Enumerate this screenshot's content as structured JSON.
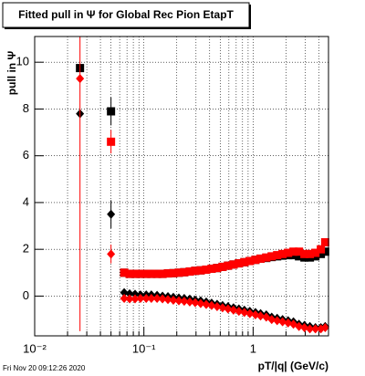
{
  "chart_data": {
    "type": "scatter",
    "title": "Fitted pull in Ψ  for Global Rec Pion EtapT",
    "y_label": "pull in Ψ",
    "x_label": "pT/|q| (GeV/c)",
    "footer": "Fri Nov 20 09:12:26 2020",
    "log_x": true,
    "grid": true,
    "xlim": [
      0.01,
      4.9
    ],
    "ylim": [
      -1.7,
      11.1
    ],
    "xticks": [
      {
        "value": 0.01,
        "label": "10⁻²"
      },
      {
        "value": 0.1,
        "label": "10⁻¹"
      },
      1
    ],
    "xminorticks": [
      0.02,
      0.03,
      0.04,
      0.05,
      0.06,
      0.07,
      0.08,
      0.09,
      0.2,
      0.3,
      0.4,
      0.5,
      0.6,
      0.7,
      0.8,
      0.9,
      2,
      3,
      4
    ],
    "yticks": [
      0,
      2,
      4,
      6,
      8,
      10
    ],
    "x": [
      0.026,
      0.05,
      0.066,
      0.074,
      0.083,
      0.093,
      0.105,
      0.117,
      0.132,
      0.148,
      0.166,
      0.186,
      0.209,
      0.234,
      0.263,
      0.295,
      0.331,
      0.372,
      0.417,
      0.468,
      0.525,
      0.589,
      0.661,
      0.741,
      0.832,
      0.933,
      1.05,
      1.17,
      1.32,
      1.48,
      1.66,
      1.86,
      2.09,
      2.34,
      2.63,
      2.95,
      3.31,
      3.72,
      4.17,
      4.57
    ],
    "series": [
      {
        "name": "black-squares",
        "color": "#000000",
        "marker": "square",
        "values": [
          9.75,
          7.9,
          1.0,
          0.95,
          0.95,
          0.95,
          0.95,
          0.95,
          0.95,
          0.95,
          0.97,
          0.98,
          1.0,
          1.02,
          1.05,
          1.08,
          1.1,
          1.13,
          1.17,
          1.2,
          1.25,
          1.3,
          1.35,
          1.4,
          1.45,
          1.5,
          1.55,
          1.6,
          1.63,
          1.67,
          1.7,
          1.73,
          1.75,
          1.75,
          1.7,
          1.65,
          1.65,
          1.7,
          1.8,
          1.9
        ],
        "errors": [
          null,
          0.6,
          null,
          null,
          null,
          null,
          null,
          null,
          null,
          null,
          null,
          null,
          null,
          null,
          null,
          null,
          null,
          null,
          null,
          null,
          null,
          null,
          null,
          null,
          null,
          null,
          null,
          null,
          null,
          null,
          null,
          null,
          null,
          null,
          null,
          null,
          null,
          null,
          null,
          null
        ]
      },
      {
        "name": "red-squares",
        "color": "#ff0000",
        "marker": "square",
        "values": [
          null,
          6.6,
          1.0,
          0.95,
          0.95,
          0.95,
          0.95,
          0.95,
          0.95,
          0.95,
          0.97,
          0.98,
          1.0,
          1.02,
          1.05,
          1.08,
          1.1,
          1.13,
          1.17,
          1.2,
          1.25,
          1.3,
          1.35,
          1.4,
          1.45,
          1.5,
          1.55,
          1.6,
          1.65,
          1.7,
          1.75,
          1.8,
          1.85,
          1.9,
          1.9,
          1.8,
          1.8,
          1.85,
          2.0,
          2.3
        ],
        "errors": [
          null,
          0.5,
          null,
          null,
          null,
          null,
          null,
          null,
          null,
          null,
          null,
          null,
          null,
          null,
          null,
          null,
          null,
          null,
          null,
          null,
          null,
          null,
          null,
          null,
          null,
          null,
          null,
          null,
          null,
          null,
          null,
          null,
          null,
          null,
          null,
          null,
          null,
          null,
          null,
          null
        ]
      },
      {
        "name": "black-diamonds",
        "color": "#000000",
        "marker": "diamond",
        "values": [
          7.8,
          3.5,
          0.15,
          0.1,
          0.08,
          0.05,
          0.05,
          0.05,
          0.03,
          0.0,
          -0.02,
          -0.05,
          -0.08,
          -0.1,
          -0.13,
          -0.17,
          -0.2,
          -0.25,
          -0.3,
          -0.35,
          -0.4,
          -0.45,
          -0.5,
          -0.55,
          -0.6,
          -0.65,
          -0.7,
          -0.75,
          -0.8,
          -0.9,
          -0.95,
          -1.0,
          -1.05,
          -1.1,
          -1.2,
          -1.25,
          -1.3,
          -1.35,
          -1.35,
          -1.3
        ],
        "errors": [
          null,
          0.6,
          null,
          null,
          null,
          null,
          null,
          null,
          null,
          null,
          null,
          null,
          null,
          null,
          null,
          null,
          null,
          null,
          null,
          null,
          null,
          null,
          null,
          null,
          null,
          null,
          null,
          null,
          null,
          null,
          null,
          null,
          null,
          null,
          null,
          null,
          null,
          null,
          null,
          null
        ]
      },
      {
        "name": "red-diamonds",
        "color": "#ff0000",
        "marker": "diamond",
        "values": [
          9.3,
          1.8,
          -0.1,
          -0.12,
          -0.12,
          -0.1,
          -0.1,
          -0.1,
          -0.1,
          -0.12,
          -0.15,
          -0.18,
          -0.2,
          -0.22,
          -0.25,
          -0.28,
          -0.32,
          -0.36,
          -0.4,
          -0.45,
          -0.5,
          -0.55,
          -0.6,
          -0.65,
          -0.7,
          -0.75,
          -0.8,
          -0.85,
          -0.9,
          -1.0,
          -1.05,
          -1.1,
          -1.15,
          -1.2,
          -1.3,
          -1.35,
          -1.4,
          -1.4,
          -1.4,
          -1.35
        ],
        "errors": [
          10.8,
          0.4,
          null,
          null,
          null,
          null,
          null,
          null,
          null,
          null,
          null,
          null,
          null,
          null,
          null,
          null,
          null,
          null,
          null,
          null,
          null,
          null,
          null,
          null,
          null,
          null,
          null,
          null,
          null,
          null,
          null,
          null,
          null,
          null,
          null,
          null,
          null,
          null,
          null,
          null
        ]
      }
    ]
  }
}
